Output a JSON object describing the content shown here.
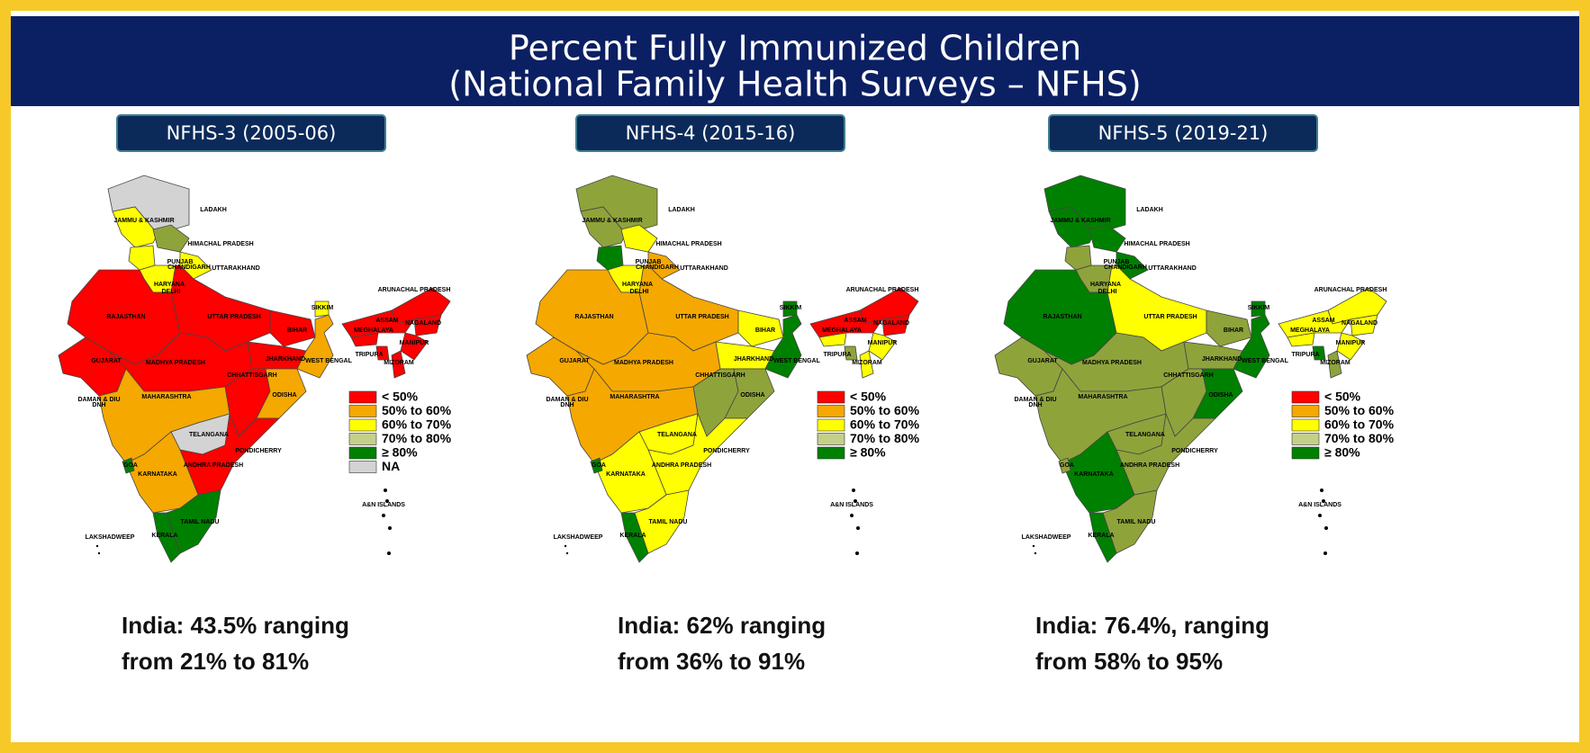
{
  "header": {
    "title_line1": "Percent Fully Immunized Children",
    "title_line2": "(National Family Health Surveys – NFHS)"
  },
  "state_labels": [
    "LADAKH",
    "JAMMU & KASHMIR",
    "HIMACHAL PRADESH",
    "PUNJAB",
    "CHANDIGARH",
    "UTTARAKHAND",
    "HARYANA",
    "DELHI",
    "RAJASTHAN",
    "UTTAR PRADESH",
    "SIKKIM",
    "ARUNACHAL PRADESH",
    "ASSAM",
    "NAGALAND",
    "MEGHALAYA",
    "MANIPUR",
    "BIHAR",
    "TRIPURA",
    "MIZORAM",
    "GUJARAT",
    "MADHYA PRADESH",
    "JHARKHAND",
    "WEST BENGAL",
    "CHHATTISGARH",
    "ODISHA",
    "DAMAN & DIU",
    "DNH",
    "MAHARASHTRA",
    "TELANGANA",
    "PONDICHERRY",
    "GOA",
    "KARNATAKA",
    "ANDHRA PRADESH",
    "TAMIL NADU",
    "KERALA",
    "LAKSHADWEEP",
    "A&N ISLANDS"
  ],
  "maps": [
    {
      "heading": "NFHS-3 (2005-06)",
      "legend": [
        {
          "label": "< 50%",
          "color": "#ff0000"
        },
        {
          "label": "50% to 60%",
          "color": "#f5a800"
        },
        {
          "label": "60% to 70%",
          "color": "#ffff00"
        },
        {
          "label": "70% to 80%",
          "color": "#c4cf8a"
        },
        {
          "label": "≥ 80%",
          "color": "#008000"
        },
        {
          "label": "NA",
          "color": "#d3d3d3"
        }
      ],
      "state_colors": {
        "ladakh": "#d3d3d3",
        "jk": "#ffff00",
        "hp": "#8fa33b",
        "punjab": "#ffff00",
        "uttarakhand": "#ffff00",
        "haryana": "#ffff00",
        "rajasthan": "#ff0000",
        "up": "#ff0000",
        "bihar": "#ff0000",
        "gujarat": "#ff0000",
        "mp": "#ff0000",
        "jharkhand": "#ff0000",
        "wb": "#f5a800",
        "sikkim": "#ffff00",
        "arunachal": "#ff0000",
        "assam": "#ff0000",
        "meghalaya": "#ff0000",
        "nagaland": "#ff0000",
        "manipur": "#ff0000",
        "mizoram": "#ff0000",
        "tripura": "#ff0000",
        "chhattisgarh": "#ff0000",
        "odisha": "#f5a800",
        "maharashtra": "#f5a800",
        "telangana": "#d3d3d3",
        "ap": "#ff0000",
        "karnataka": "#f5a800",
        "goa": "#008000",
        "kerala": "#008000",
        "tn": "#008000"
      },
      "summary_line1": "India: 43.5% ranging",
      "summary_line2": "from 21% to 81%"
    },
    {
      "heading": "NFHS-4 (2015-16)",
      "legend": [
        {
          "label": "< 50%",
          "color": "#ff0000"
        },
        {
          "label": "50% to 60%",
          "color": "#f5a800"
        },
        {
          "label": "60% to 70%",
          "color": "#ffff00"
        },
        {
          "label": "70% to 80%",
          "color": "#c4cf8a"
        },
        {
          "label": "≥ 80%",
          "color": "#008000"
        }
      ],
      "state_colors": {
        "ladakh": "#8fa33b",
        "jk": "#8fa33b",
        "hp": "#ffff00",
        "punjab": "#008000",
        "uttarakhand": "#f5a800",
        "haryana": "#ffff00",
        "rajasthan": "#f5a800",
        "up": "#f5a800",
        "bihar": "#ffff00",
        "gujarat": "#f5a800",
        "mp": "#f5a800",
        "jharkhand": "#ffff00",
        "wb": "#008000",
        "sikkim": "#008000",
        "arunachal": "#ff0000",
        "assam": "#ff0000",
        "meghalaya": "#ffff00",
        "nagaland": "#ff0000",
        "manipur": "#ffff00",
        "mizoram": "#ffff00",
        "tripura": "#8fa33b",
        "chhattisgarh": "#8fa33b",
        "odisha": "#8fa33b",
        "maharashtra": "#f5a800",
        "telangana": "#ffff00",
        "ap": "#ffff00",
        "karnataka": "#ffff00",
        "goa": "#008000",
        "kerala": "#008000",
        "tn": "#ffff00"
      },
      "summary_line1": "India: 62% ranging",
      "summary_line2": "from 36% to 91%"
    },
    {
      "heading": "NFHS-5 (2019-21)",
      "legend": [
        {
          "label": "< 50%",
          "color": "#ff0000"
        },
        {
          "label": "50% to 60%",
          "color": "#f5a800"
        },
        {
          "label": "60% to 70%",
          "color": "#ffff00"
        },
        {
          "label": "70% to 80%",
          "color": "#c4cf8a"
        },
        {
          "label": "≥ 80%",
          "color": "#008000"
        }
      ],
      "state_colors": {
        "ladakh": "#008000",
        "jk": "#008000",
        "hp": "#008000",
        "punjab": "#8fa33b",
        "uttarakhand": "#008000",
        "haryana": "#8fa33b",
        "rajasthan": "#008000",
        "up": "#ffff00",
        "bihar": "#8fa33b",
        "gujarat": "#8fa33b",
        "mp": "#8fa33b",
        "jharkhand": "#8fa33b",
        "wb": "#008000",
        "sikkim": "#008000",
        "arunachal": "#ffff00",
        "assam": "#ffff00",
        "meghalaya": "#ffff00",
        "nagaland": "#ffff00",
        "manipur": "#ffff00",
        "mizoram": "#8fa33b",
        "tripura": "#008000",
        "chhattisgarh": "#8fa33b",
        "odisha": "#008000",
        "maharashtra": "#8fa33b",
        "telangana": "#8fa33b",
        "ap": "#8fa33b",
        "karnataka": "#008000",
        "goa": "#8fa33b",
        "kerala": "#008000",
        "tn": "#8fa33b"
      },
      "summary_line1": "India: 76.4%, ranging",
      "summary_line2": "from 58% to 95%"
    }
  ]
}
